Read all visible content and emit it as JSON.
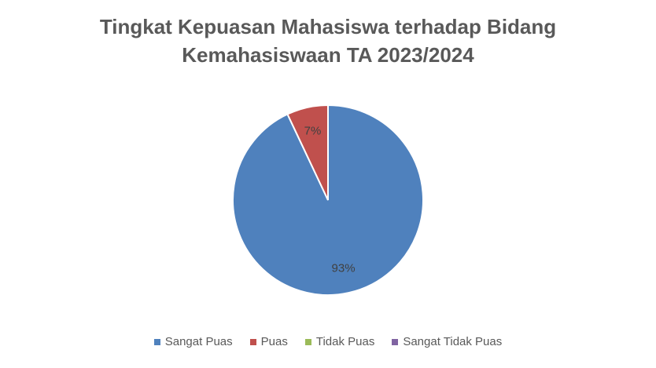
{
  "chart_data": {
    "type": "pie",
    "title": "Tingkat Kepuasan Mahasiswa terhadap Bidang Kemahasiswaan TA 2023/2024",
    "categories": [
      "Sangat Puas",
      "Puas",
      "Tidak Puas",
      "Sangat Tidak Puas"
    ],
    "values": [
      93,
      7,
      0,
      0
    ],
    "value_labels": [
      "93%",
      "7%",
      null,
      null
    ],
    "colors": [
      "#4f81bd",
      "#c0504d",
      "#9bbb59",
      "#8064a2"
    ],
    "legend": "bottom"
  }
}
